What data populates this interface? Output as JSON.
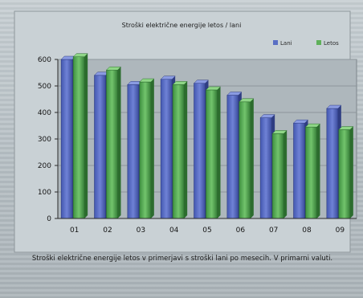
{
  "chart_data": {
    "type": "bar",
    "title": "Stroški električne energije letos / lani",
    "caption": "Stroški električne energije letos v primerjavi s stroški lani po mesecih. V primarni valuti.",
    "categories": [
      "01",
      "02",
      "03",
      "04",
      "05",
      "06",
      "07",
      "08",
      "09"
    ],
    "series": [
      {
        "name": "Lani",
        "color": "#5a6fc4",
        "values": [
          600,
          540,
          505,
          525,
          510,
          465,
          380,
          360,
          415
        ]
      },
      {
        "name": "Letos",
        "color": "#5fb05a",
        "values": [
          610,
          560,
          515,
          505,
          485,
          440,
          320,
          345,
          335
        ]
      }
    ],
    "ylim": [
      0,
      600
    ],
    "yticks": [
      0,
      100,
      200,
      300,
      400,
      500,
      600
    ],
    "grid": true,
    "legend_position": "top-right"
  }
}
